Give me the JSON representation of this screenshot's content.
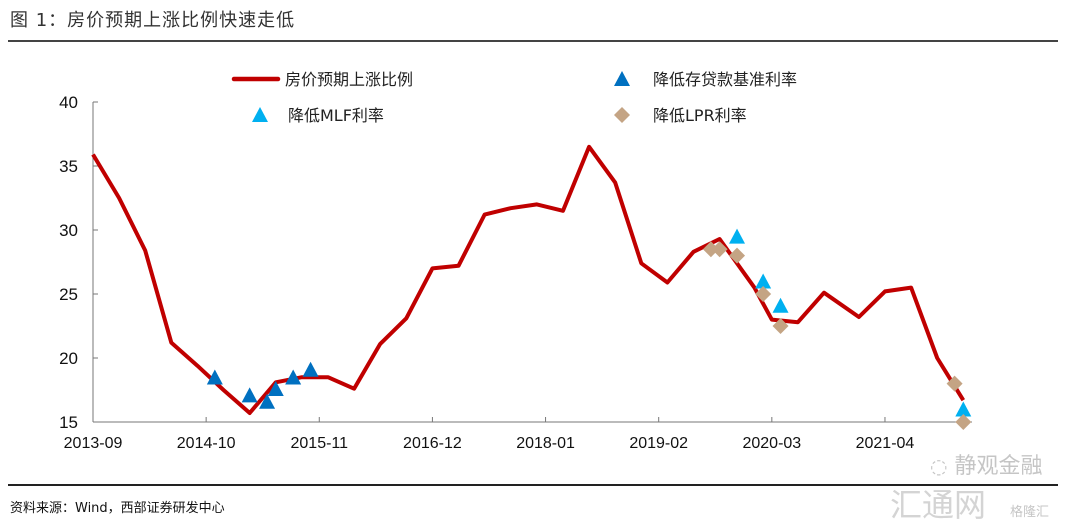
{
  "header": {
    "title": "图 1：房价预期上涨比例快速走低"
  },
  "footer": {
    "source": "资料来源：Wind，西部证券研发中心"
  },
  "watermarks": {
    "wechat": "静观金融",
    "site1": "汇通网",
    "site2": "格隆汇"
  },
  "colors": {
    "line": "#C00000",
    "deposit": "#0070C0",
    "mlf": "#00B0F0",
    "lpr": "#C4A484"
  },
  "chart_data": {
    "type": "line",
    "title": "",
    "xlabel": "",
    "ylabel": "",
    "ylim": [
      15,
      40
    ],
    "yticks": [
      "15",
      "20",
      "25",
      "30",
      "35",
      "40"
    ],
    "xlim": [
      "2013-09",
      "2022-02"
    ],
    "xticks": [
      "2013-09",
      "2014-10",
      "2015-11",
      "2016-12",
      "2018-01",
      "2019-02",
      "2020-03",
      "2021-04"
    ],
    "grid": false,
    "legend": [
      "房价预期上涨比例",
      "降低存贷款基准利率",
      "降低MLF利率",
      "降低LPR利率"
    ],
    "series": [
      {
        "name": "房价预期上涨比例",
        "kind": "line",
        "points": [
          [
            "2013-09",
            35.9
          ],
          [
            "2013-12",
            32.5
          ],
          [
            "2014-03",
            28.4
          ],
          [
            "2014-06",
            21.2
          ],
          [
            "2014-09",
            19.4
          ],
          [
            "2014-12",
            17.5
          ],
          [
            "2015-03",
            15.7
          ],
          [
            "2015-06",
            18.1
          ],
          [
            "2015-09",
            18.5
          ],
          [
            "2015-12",
            18.5
          ],
          [
            "2016-03",
            17.6
          ],
          [
            "2016-06",
            21.1
          ],
          [
            "2016-09",
            23.1
          ],
          [
            "2016-12",
            27.0
          ],
          [
            "2017-03",
            27.2
          ],
          [
            "2017-06",
            31.2
          ],
          [
            "2017-09",
            31.7
          ],
          [
            "2017-12",
            32.0
          ],
          [
            "2018-03",
            31.5
          ],
          [
            "2018-06",
            36.5
          ],
          [
            "2018-09",
            33.7
          ],
          [
            "2018-12",
            27.4
          ],
          [
            "2019-03",
            25.9
          ],
          [
            "2019-06",
            28.3
          ],
          [
            "2019-09",
            29.3
          ],
          [
            "2020-01",
            25.5
          ],
          [
            "2020-03",
            23.0
          ],
          [
            "2020-06",
            22.8
          ],
          [
            "2020-09",
            25.1
          ],
          [
            "2021-01",
            23.2
          ],
          [
            "2021-04",
            25.2
          ],
          [
            "2021-07",
            25.5
          ],
          [
            "2021-10",
            20.0
          ],
          [
            "2022-01",
            16.7
          ]
        ]
      },
      {
        "name": "降低存贷款基准利率",
        "kind": "triangle",
        "points": [
          [
            "2014-11",
            18.4
          ],
          [
            "2015-03",
            17.0
          ],
          [
            "2015-05",
            16.5
          ],
          [
            "2015-06",
            17.5
          ],
          [
            "2015-08",
            18.4
          ],
          [
            "2015-10",
            19.0
          ]
        ]
      },
      {
        "name": "降低MLF利率",
        "kind": "triangle-light",
        "points": [
          [
            "2019-11",
            29.4
          ],
          [
            "2020-02",
            25.9
          ],
          [
            "2020-04",
            24.0
          ],
          [
            "2022-01",
            15.9
          ]
        ]
      },
      {
        "name": "降低LPR利率",
        "kind": "diamond",
        "points": [
          [
            "2019-08",
            28.5
          ],
          [
            "2019-09",
            28.5
          ],
          [
            "2019-11",
            28.0
          ],
          [
            "2020-02",
            25.0
          ],
          [
            "2020-04",
            22.5
          ],
          [
            "2021-12",
            18.0
          ],
          [
            "2022-01",
            15.0
          ]
        ]
      }
    ]
  }
}
